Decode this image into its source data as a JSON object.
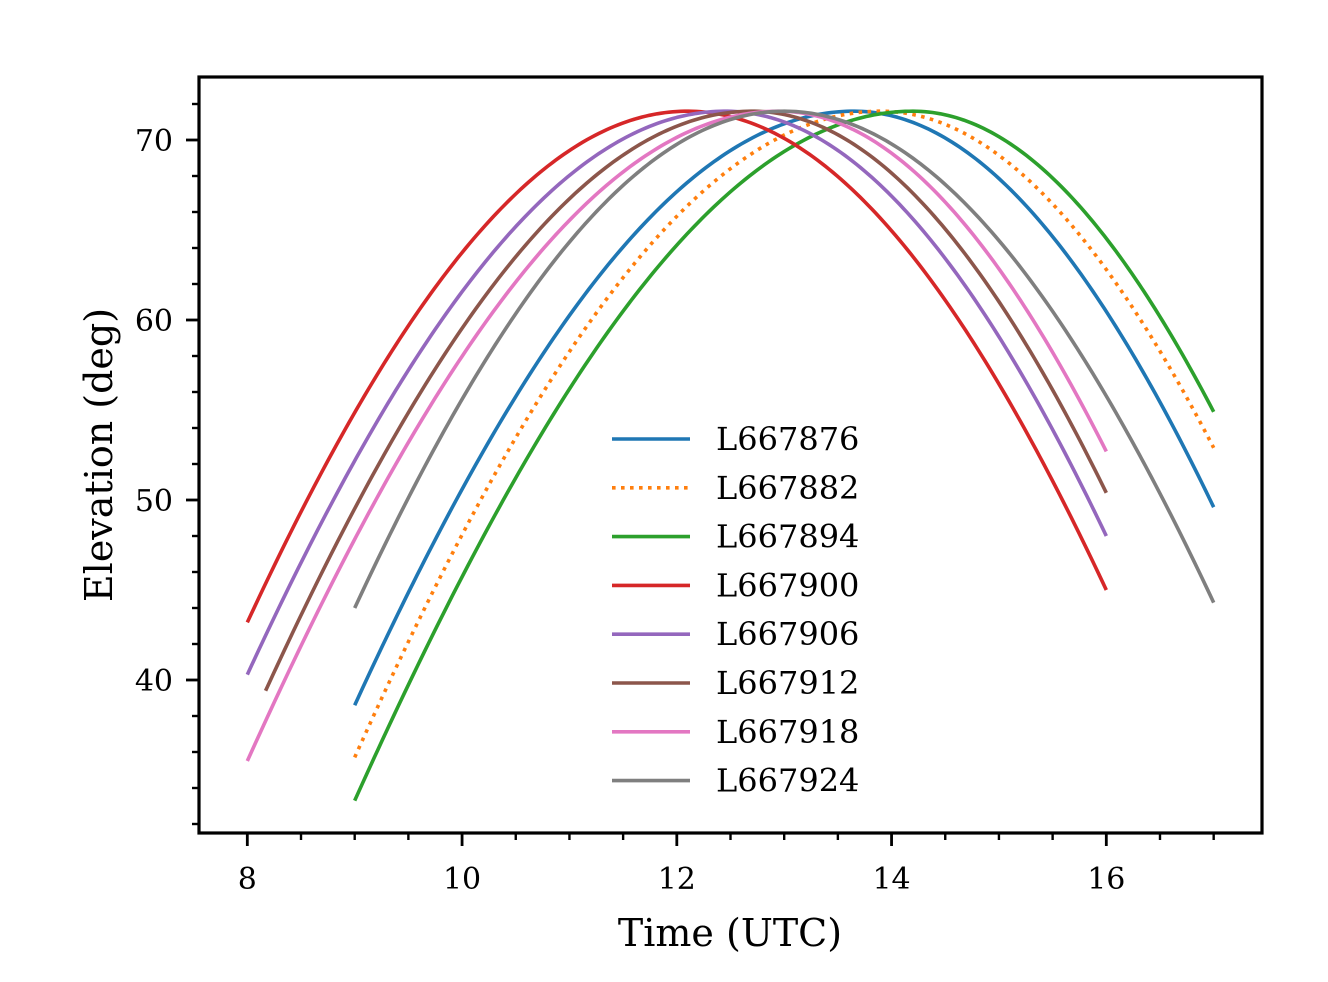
{
  "chart_data": {
    "type": "line",
    "title": "",
    "xlabel": "Time (UTC)",
    "ylabel": "Elevation (deg)",
    "xlim": [
      7.55,
      17.45
    ],
    "ylim": [
      31.5,
      73.5
    ],
    "xticks": [
      8,
      10,
      12,
      14,
      16
    ],
    "xtick_labels": [
      "8",
      "10",
      "12",
      "14",
      "16"
    ],
    "yticks": [
      40,
      50,
      60,
      70
    ],
    "ytick_labels": [
      "40",
      "50",
      "60",
      "70"
    ],
    "x_minor_step": 0.5,
    "y_minor_step": 2,
    "grid": false,
    "legend_location": "lower-center",
    "series": [
      {
        "name": "L667876",
        "color": "#1f77b4",
        "dash": "solid",
        "x_start": 9.0,
        "x_end": 17.0,
        "peak_time": 13.65,
        "peak_elevation": 71.6,
        "start_elevation": 38.6,
        "end_elevation": 49.6
      },
      {
        "name": "L667882",
        "color": "#ff7f0e",
        "dash": "dotted",
        "x_start": 9.0,
        "x_end": 17.0,
        "peak_time": 13.9,
        "peak_elevation": 71.6,
        "start_elevation": 35.7,
        "end_elevation": 52.9
      },
      {
        "name": "L667894",
        "color": "#2ca02c",
        "dash": "solid",
        "x_start": 9.0,
        "x_end": 17.0,
        "peak_time": 14.2,
        "peak_elevation": 71.6,
        "start_elevation": 33.3,
        "end_elevation": 54.9
      },
      {
        "name": "L667900",
        "color": "#d62728",
        "dash": "solid",
        "x_start": 8.0,
        "x_end": 16.0,
        "peak_time": 12.1,
        "peak_elevation": 71.6,
        "start_elevation": 43.2,
        "end_elevation": 45.0
      },
      {
        "name": "L667906",
        "color": "#9467bd",
        "dash": "solid",
        "x_start": 8.0,
        "x_end": 16.0,
        "peak_time": 12.45,
        "peak_elevation": 71.6,
        "start_elevation": 40.3,
        "end_elevation": 48.0
      },
      {
        "name": "L667912",
        "color": "#8c564b",
        "dash": "solid",
        "x_start": 8.17,
        "x_end": 16.0,
        "peak_time": 12.7,
        "peak_elevation": 71.6,
        "start_elevation": 39.4,
        "end_elevation": 50.4
      },
      {
        "name": "L667918",
        "color": "#e377c2",
        "dash": "solid",
        "x_start": 8.0,
        "x_end": 16.0,
        "peak_time": 12.95,
        "peak_elevation": 71.6,
        "start_elevation": 35.5,
        "end_elevation": 52.7
      },
      {
        "name": "L667924",
        "color": "#7f7f7f",
        "dash": "solid",
        "x_start": 9.0,
        "x_end": 17.0,
        "peak_time": 13.0,
        "peak_elevation": 71.6,
        "start_elevation": 44.0,
        "end_elevation": 44.3
      }
    ]
  }
}
